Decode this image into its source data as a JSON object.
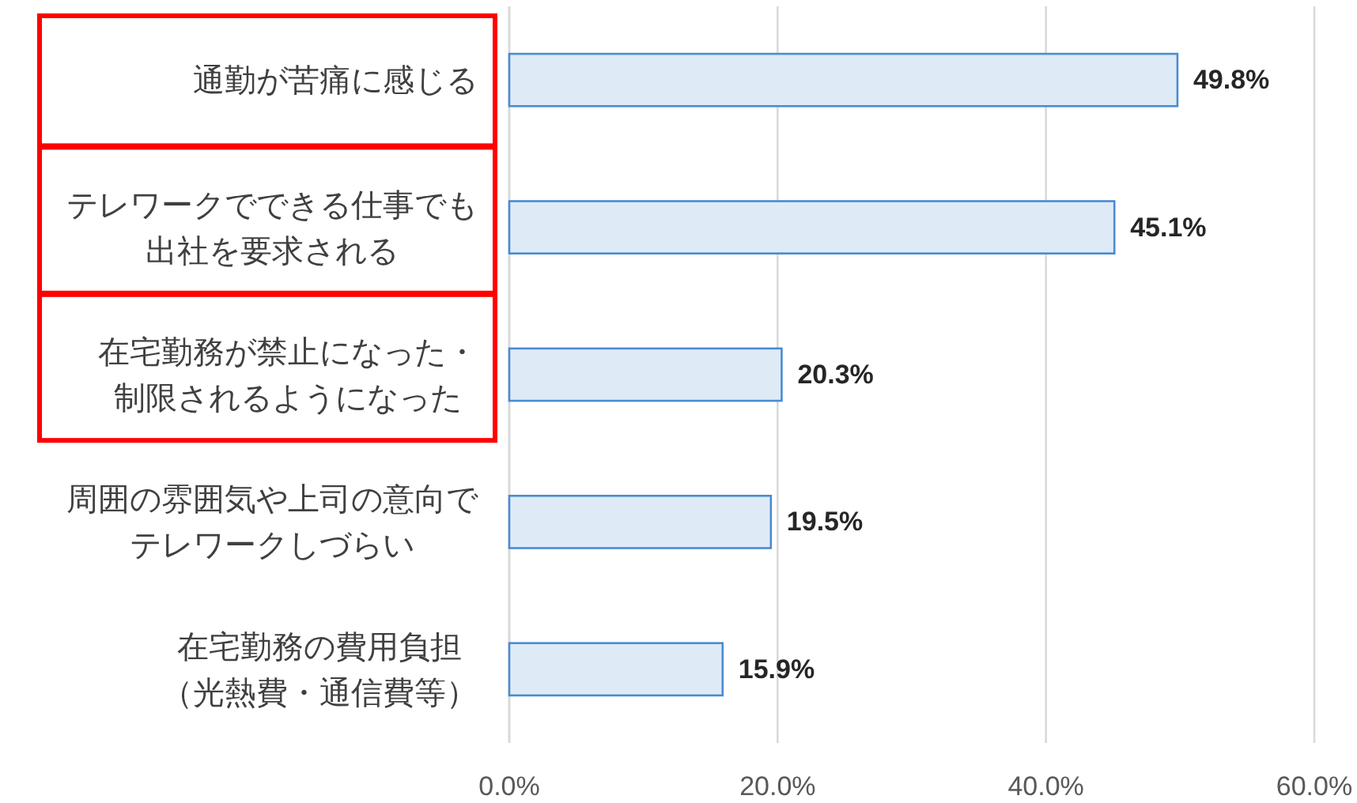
{
  "chart_data": {
    "type": "bar",
    "orientation": "horizontal",
    "categories": [
      "通勤が苦痛に感じる",
      "テレワークでできる仕事でも出社を要求される",
      "在宅勤務が禁止になった・制限されるようになった",
      "周囲の雰囲気や上司の意向でテレワークしづらい",
      "在宅勤務の費用負担（光熱費・通信費等）"
    ],
    "values": [
      49.8,
      45.1,
      20.3,
      19.5,
      15.9
    ],
    "value_labels": [
      "49.8%",
      "45.1%",
      "20.3%",
      "19.5%",
      "15.9%"
    ],
    "color": "#deebf7",
    "xlim": [
      0,
      60
    ],
    "xticks": [
      {
        "value": 0,
        "label": "0.0%"
      },
      {
        "value": 20,
        "label": "20.0%"
      },
      {
        "value": 40,
        "label": "40.0%"
      },
      {
        "value": 60,
        "label": "60.0%"
      }
    ],
    "grid": "x"
  }
}
